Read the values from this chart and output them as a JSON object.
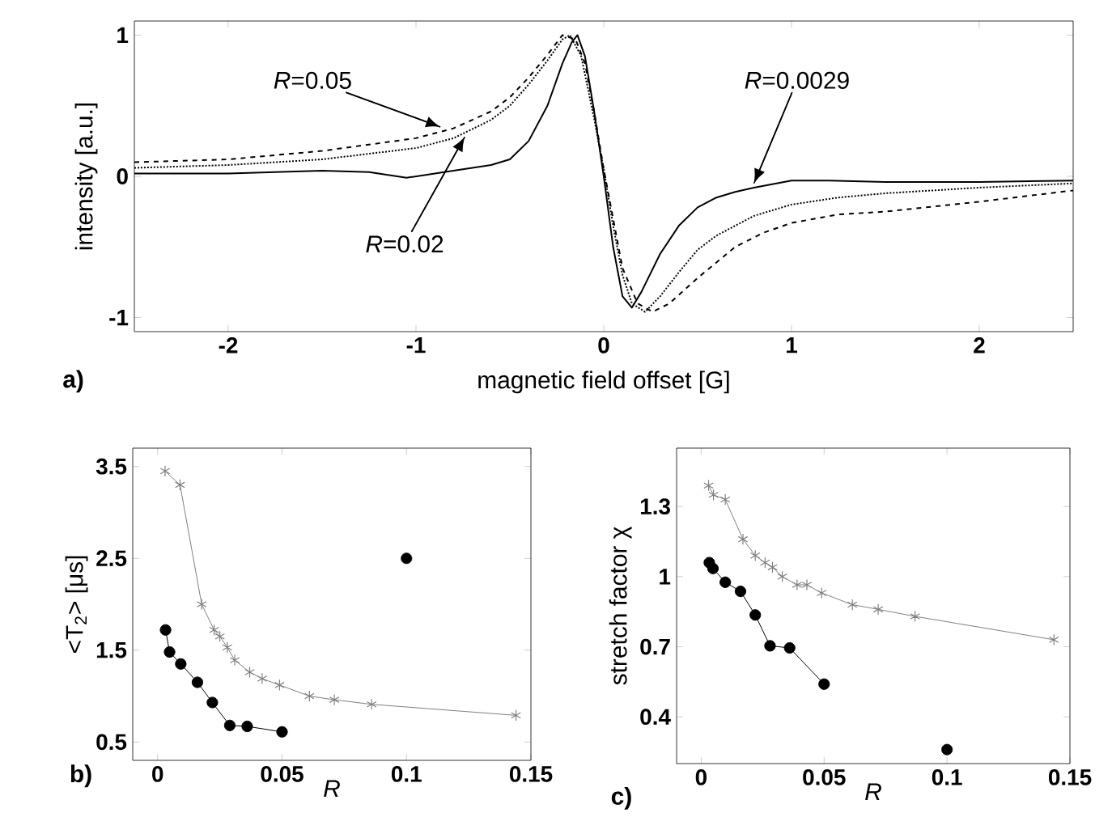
{
  "chart_data": [
    {
      "type": "line",
      "xlabel": "magnetic field offset [G]",
      "ylabel": "intensity [a.u.]",
      "xlim": [
        -2.5,
        2.5
      ],
      "ylim": [
        -1.1,
        1.1
      ],
      "xticks": [
        -2,
        -1,
        0,
        1,
        2
      ],
      "yticks": [
        -1,
        0,
        1
      ],
      "marker": "none",
      "series": [
        {
          "color": "#000000",
          "line_style": "solid",
          "x": [
            -2.5,
            -2,
            -1.5,
            -1.25,
            -1.05,
            -0.8,
            -0.6,
            -0.5,
            -0.4,
            -0.3,
            -0.22,
            -0.17,
            -0.14,
            -0.1,
            -0.05,
            0,
            0.05,
            0.1,
            0.15,
            0.2,
            0.3,
            0.4,
            0.5,
            0.6,
            0.7,
            0.8,
            1.0,
            1.2,
            1.5,
            2,
            2.5
          ],
          "values": [
            0.02,
            0.02,
            0.04,
            0.03,
            -0.01,
            0.04,
            0.08,
            0.12,
            0.25,
            0.5,
            0.8,
            0.95,
            1.0,
            0.85,
            0.45,
            0.0,
            -0.5,
            -0.85,
            -0.93,
            -0.82,
            -0.55,
            -0.35,
            -0.22,
            -0.15,
            -0.11,
            -0.08,
            -0.03,
            -0.03,
            -0.04,
            -0.04,
            -0.03
          ]
        },
        {
          "color": "#000000",
          "line_style": "dotted",
          "x": [
            -2.5,
            -2,
            -1.5,
            -1,
            -0.8,
            -0.6,
            -0.5,
            -0.4,
            -0.3,
            -0.22,
            -0.18,
            -0.12,
            -0.05,
            0,
            0.05,
            0.1,
            0.15,
            0.22,
            0.3,
            0.4,
            0.5,
            0.6,
            0.8,
            1.0,
            1.25,
            1.5,
            2,
            2.5
          ],
          "values": [
            0.06,
            0.08,
            0.12,
            0.2,
            0.27,
            0.4,
            0.5,
            0.65,
            0.82,
            0.97,
            1.0,
            0.85,
            0.4,
            0.05,
            -0.35,
            -0.7,
            -0.9,
            -0.96,
            -0.85,
            -0.68,
            -0.52,
            -0.42,
            -0.28,
            -0.2,
            -0.15,
            -0.12,
            -0.08,
            -0.05
          ]
        },
        {
          "color": "#000000",
          "line_style": "dashed",
          "x": [
            -2.5,
            -2,
            -1.5,
            -1,
            -0.8,
            -0.6,
            -0.5,
            -0.4,
            -0.3,
            -0.22,
            -0.15,
            -0.1,
            -0.05,
            0,
            0.05,
            0.1,
            0.18,
            0.26,
            0.35,
            0.5,
            0.7,
            0.85,
            1.0,
            1.25,
            1.5,
            2,
            2.5
          ],
          "values": [
            0.1,
            0.12,
            0.18,
            0.27,
            0.34,
            0.46,
            0.56,
            0.7,
            0.86,
            1.0,
            0.97,
            0.8,
            0.45,
            0.05,
            -0.3,
            -0.65,
            -0.9,
            -0.96,
            -0.9,
            -0.72,
            -0.5,
            -0.4,
            -0.33,
            -0.27,
            -0.25,
            -0.18,
            -0.1
          ]
        }
      ],
      "annotations": [
        "a)",
        {
          "text": "*R*=0.05",
          "x": -0.87,
          "y": 0.35
        },
        {
          "text": "*R*=0.02",
          "x": -0.74,
          "y": 0.28
        },
        {
          "text": "*R*=0.0029",
          "x": 0.8,
          "y": -0.05
        }
      ]
    },
    {
      "type": "line",
      "xlabel": "R",
      "ylabel": "<T$_{2}$> [μs]",
      "xlim": [
        -0.01,
        0.15
      ],
      "ylim": [
        0.3,
        3.7
      ],
      "xticks": [
        0,
        0.05,
        0.1,
        0.15
      ],
      "yticks": [
        0.5,
        1.5,
        2.5,
        3.5
      ],
      "series": [
        {
          "color": "#808080",
          "marker": "cross",
          "x": [
            0.003,
            0.009,
            0.0177,
            0.0227,
            0.025,
            0.028,
            0.031,
            0.037,
            0.042,
            0.049,
            0.061,
            0.071,
            0.086,
            0.144
          ],
          "values": [
            3.45,
            3.3,
            2.0,
            1.72,
            1.65,
            1.53,
            1.39,
            1.26,
            1.19,
            1.12,
            1.0,
            0.96,
            0.91,
            0.79
          ]
        },
        {
          "color": "#000000",
          "marker": "circle",
          "x": [
            0.0032,
            0.0048,
            0.0093,
            0.016,
            0.022,
            0.029,
            0.036,
            0.05
          ],
          "values": [
            1.72,
            1.48,
            1.35,
            1.15,
            0.93,
            0.68,
            0.67,
            0.61
          ]
        },
        {
          "type": "scatter",
          "color": "#000000",
          "marker": "circle",
          "x": [
            0.1
          ],
          "values": [
            2.5
          ]
        }
      ],
      "annotations": [
        "b)"
      ]
    },
    {
      "type": "line",
      "xlabel": "R",
      "ylabel": "stretch factor χ",
      "xlim": [
        -0.01,
        0.15
      ],
      "ylim": [
        0.2,
        1.55
      ],
      "xticks": [
        0,
        0.05,
        0.1,
        0.15
      ],
      "yticks": [
        0.4,
        0.7,
        1,
        1.3
      ],
      "series": [
        {
          "color": "#808080",
          "marker": "cross",
          "x": [
            0.003,
            0.005,
            0.0098,
            0.017,
            0.022,
            0.026,
            0.029,
            0.033,
            0.039,
            0.043,
            0.049,
            0.0615,
            0.072,
            0.087,
            0.1435
          ],
          "values": [
            1.39,
            1.35,
            1.33,
            1.16,
            1.09,
            1.06,
            1.04,
            1.0,
            0.965,
            0.965,
            0.93,
            0.88,
            0.86,
            0.83,
            0.73
          ]
        },
        {
          "color": "#000000",
          "marker": "circle",
          "x": [
            0.0033,
            0.0048,
            0.0098,
            0.016,
            0.022,
            0.028,
            0.036,
            0.05
          ],
          "values": [
            1.06,
            1.035,
            0.976,
            0.937,
            0.836,
            0.704,
            0.695,
            0.54
          ]
        },
        {
          "type": "scatter",
          "color": "#000000",
          "marker": "circle",
          "x": [
            0.1
          ],
          "values": [
            0.26
          ]
        }
      ],
      "annotations": [
        "c)"
      ]
    }
  ]
}
